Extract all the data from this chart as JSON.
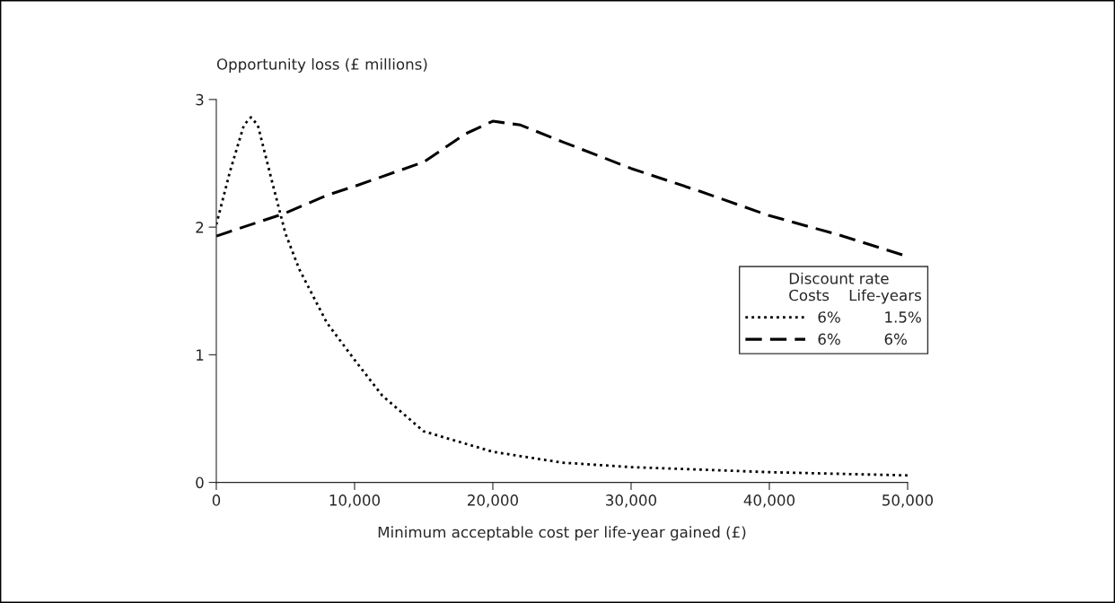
{
  "chart_data": {
    "type": "line",
    "xlabel": "Minimum acceptable cost per life-year gained (£)",
    "ylabel": "Opportunity loss (£ millions)",
    "xlim": [
      0,
      50000
    ],
    "ylim": [
      0,
      3
    ],
    "xticks": [
      0,
      {
        "value": 10000,
        "label": "10,000"
      },
      {
        "value": 20000,
        "label": "20,000"
      },
      {
        "value": 30000,
        "label": "30,000"
      },
      {
        "value": 40000,
        "label": "40,000"
      },
      {
        "value": 50000,
        "label": "50,000"
      }
    ],
    "yticks": [
      0,
      1,
      2,
      3
    ],
    "grid": false,
    "legend": "right",
    "legend_title": "Discount rate\nCosts    Life-years",
    "series": [
      {
        "name": "6%         1.5%",
        "color": "#000000",
        "line_style": "dotted",
        "x": [
          0,
          1000,
          2000,
          2500,
          3000,
          4000,
          5000,
          6000,
          8000,
          10000,
          12000,
          15000,
          20000,
          25000,
          30000,
          40000,
          50000
        ],
        "values": [
          2.02,
          2.44,
          2.8,
          2.86,
          2.8,
          2.37,
          1.95,
          1.67,
          1.25,
          0.96,
          0.68,
          0.4,
          0.24,
          0.155,
          0.12,
          0.08,
          0.055
        ]
      },
      {
        "name": "6%         6%",
        "color": "#000000",
        "line_style": "dashed",
        "x": [
          0,
          5000,
          8000,
          10000,
          15000,
          18000,
          20000,
          22000,
          25000,
          30000,
          35000,
          40000,
          45000,
          50000
        ],
        "values": [
          1.93,
          2.11,
          2.25,
          2.32,
          2.51,
          2.73,
          2.83,
          2.8,
          2.67,
          2.46,
          2.28,
          2.09,
          1.94,
          1.77
        ]
      }
    ]
  }
}
